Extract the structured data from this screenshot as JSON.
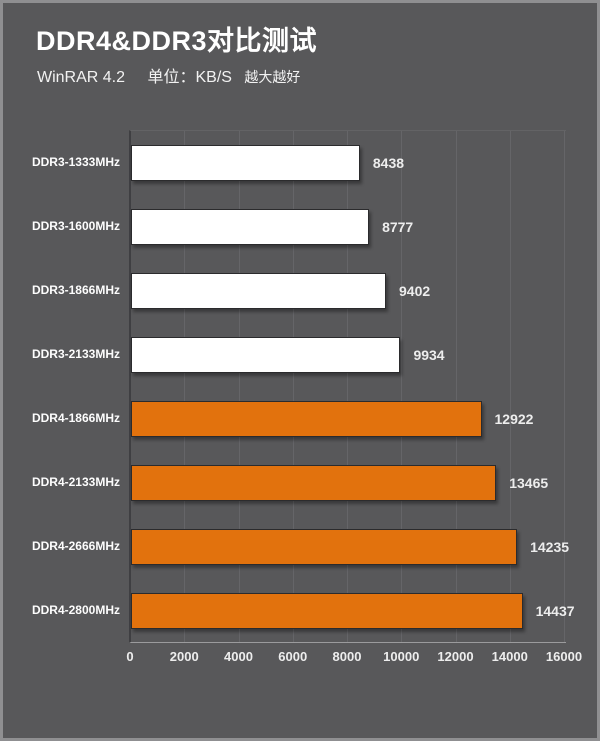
{
  "header": {
    "title": "DDR4&DDR3对比测试",
    "subtitle_app": "WinRAR 4.2",
    "subtitle_unit": "单位：KB/S",
    "subtitle_note": "越大越好"
  },
  "chart_data": {
    "type": "bar",
    "orientation": "horizontal",
    "title": "DDR4&DDR3对比测试",
    "subtitle": "WinRAR 4.2 单位：KB/S 越大越好",
    "categories": [
      "DDR3-1333MHz",
      "DDR3-1600MHz",
      "DDR3-1866MHz",
      "DDR3-2133MHz",
      "DDR4-1866MHz",
      "DDR4-2133MHz",
      "DDR4-2666MHz",
      "DDR4-2800MHz"
    ],
    "values": [
      8438,
      8777,
      9402,
      9934,
      12922,
      13465,
      14235,
      14437
    ],
    "bar_colors": [
      "#ffffff",
      "#ffffff",
      "#ffffff",
      "#ffffff",
      "#e2720d",
      "#e2720d",
      "#e2720d",
      "#e2720d"
    ],
    "value_labels": [
      8438,
      8777,
      9402,
      9934,
      12922,
      13465,
      14235,
      14437
    ],
    "xlim": [
      0,
      16000
    ],
    "x_ticks": [
      0,
      2000,
      4000,
      6000,
      8000,
      10000,
      12000,
      14000,
      16000
    ],
    "grid": "vertical-only",
    "legend": "none",
    "value_label_position": "right-of-bar"
  },
  "colors": {
    "background": "#58585a",
    "frame_border": "#8f8f91",
    "text": "#f2f2f2",
    "bar_white": "#ffffff",
    "bar_orange": "#e2720d",
    "bar_border": "#2b2b2d",
    "gridline": "#656568",
    "axis_line_dark": "#3f3f42",
    "axis_line_light": "#9b9b9d"
  }
}
